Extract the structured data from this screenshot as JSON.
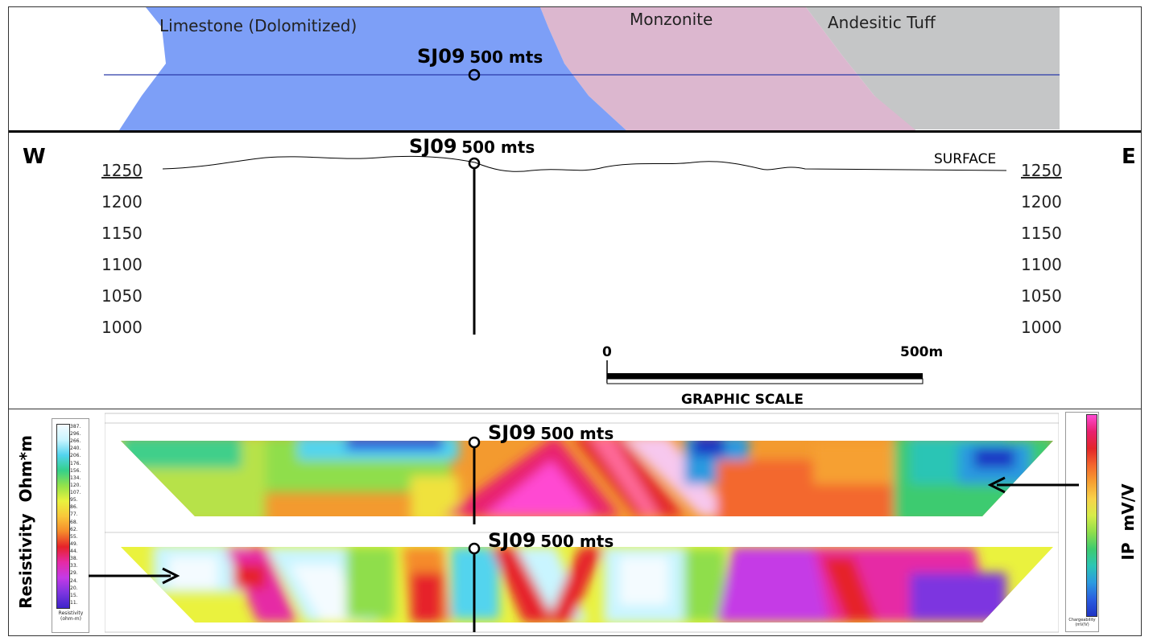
{
  "geology": {
    "units": [
      {
        "name": "Limestone (Dolomitized)",
        "color": "#7d9ff7"
      },
      {
        "name": "Monzonite",
        "color": "#dcb7cf"
      },
      {
        "name": "Andesitic Tuff",
        "color": "#c5c6c7"
      }
    ]
  },
  "drillhole": {
    "id": "SJ09",
    "distance": "500 mts"
  },
  "section": {
    "west": "W",
    "east": "E",
    "surface": "SURFACE",
    "elevations": [
      "1250",
      "1200",
      "1150",
      "1100",
      "1050",
      "1000"
    ]
  },
  "scale": {
    "start": "0",
    "end": "500m",
    "title": "GRAPHIC SCALE"
  },
  "geophysics": {
    "left_axis": "Resistivity  Ohm*m",
    "right_axis": "IP  mV/V",
    "resistivity_legend_title": "Resistivity (ohm-m)",
    "resistivity_legend_values": [
      "387.",
      "296.",
      "266.",
      "240.",
      "206.",
      "176.",
      "156.",
      "134.",
      "120.",
      "107.",
      "95.",
      "86.",
      "77.",
      "68.",
      "62.",
      "55.",
      "49.",
      "44.",
      "38.",
      "33.",
      "29.",
      "24.",
      "20.",
      "15.",
      "11."
    ],
    "chargeability_legend_title": "Chargeability (mV/V)"
  },
  "colors": {
    "limestone": "#7d9ff7",
    "monzonite": "#dcb7cf",
    "tuff": "#c5c6c7"
  }
}
